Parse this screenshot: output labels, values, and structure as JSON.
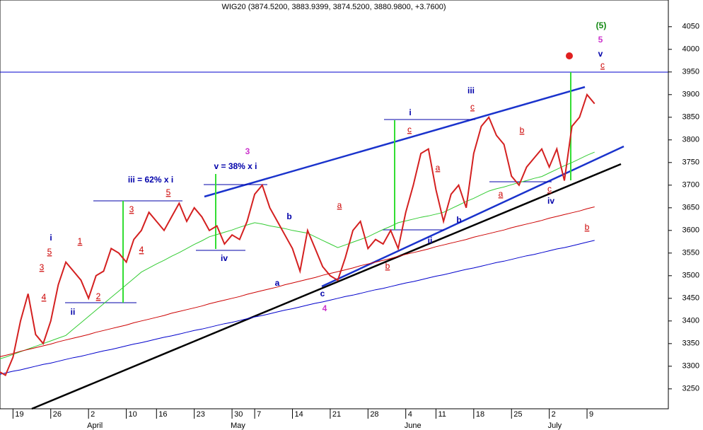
{
  "chart_data": {
    "type": "line",
    "title": "WIG20 (3874.5200, 3883.9399, 3874.5200, 3880.9800, +3.7600)",
    "categories": [
      null,
      null,
      "19",
      null,
      null,
      null,
      null,
      "26",
      null,
      null,
      null,
      null,
      "2",
      null,
      null,
      null,
      null,
      "10",
      null,
      null,
      null,
      "16",
      null,
      null,
      null,
      null,
      "23",
      null,
      null,
      null,
      null,
      "30",
      null,
      null,
      "7",
      null,
      null,
      null,
      null,
      "14",
      null,
      null,
      null,
      null,
      "21",
      null,
      null,
      null,
      null,
      "28",
      null,
      null,
      null,
      null,
      "4",
      null,
      null,
      null,
      "11",
      null,
      null,
      null,
      null,
      "18",
      null,
      null,
      null,
      null,
      "25",
      null,
      null,
      null,
      null,
      "2",
      null,
      null,
      null,
      null,
      "9",
      null
    ],
    "months": [
      "April",
      "May",
      "June",
      "July"
    ],
    "series": [
      {
        "color": "#d42020",
        "values": [
          3290,
          3280,
          3320,
          3400,
          3460,
          3370,
          3350,
          3400,
          3480,
          3530,
          3510,
          3490,
          3450,
          3500,
          3510,
          3560,
          3550,
          3530,
          3580,
          3600,
          3640,
          3620,
          3600,
          3630,
          3660,
          3620,
          3650,
          3630,
          3600,
          3610,
          3570,
          3590,
          3580,
          3620,
          3680,
          3700,
          3650,
          3620,
          3590,
          3560,
          3510,
          3600,
          3560,
          3520,
          3500,
          3490,
          3540,
          3600,
          3620,
          3560,
          3580,
          3570,
          3600,
          3560,
          3640,
          3700,
          3770,
          3780,
          3690,
          3620,
          3680,
          3700,
          3650,
          3770,
          3830,
          3850,
          3810,
          3790,
          3720,
          3700,
          3740,
          3760,
          3780,
          3740,
          3780,
          3710,
          3830,
          3850,
          3900,
          3880
        ]
      },
      {
        "color": "#33cc33",
        "values": [
          3315,
          3320,
          3326,
          3332,
          3338,
          3344,
          3350,
          3356,
          3362,
          3368,
          3382,
          3396,
          3410,
          3424,
          3438,
          3452,
          3466,
          3480,
          3494,
          3508,
          3517,
          3526,
          3534,
          3543,
          3551,
          3560,
          3569,
          3577,
          3586,
          3591,
          3596,
          3601,
          3607,
          3612,
          3617,
          3614,
          3610,
          3607,
          3604,
          3600,
          3597,
          3594,
          3586,
          3578,
          3570,
          3562,
          3568,
          3574,
          3580,
          3586,
          3594,
          3602,
          3609,
          3617,
          3621,
          3625,
          3629,
          3632,
          3636,
          3640,
          3648,
          3656,
          3664,
          3671,
          3679,
          3687,
          3692,
          3696,
          3701,
          3706,
          3710,
          3715,
          3719,
          3727,
          3735,
          3743,
          3750,
          3758,
          3766,
          3773
        ]
      },
      {
        "color": "#cc0000",
        "values": [
          3320,
          3324,
          3328,
          3333,
          3337,
          3341,
          3345,
          3349,
          3354,
          3358,
          3362,
          3366,
          3370,
          3375,
          3379,
          3383,
          3387,
          3391,
          3396,
          3400,
          3404,
          3408,
          3412,
          3417,
          3421,
          3425,
          3429,
          3433,
          3438,
          3442,
          3446,
          3450,
          3454,
          3459,
          3463,
          3467,
          3471,
          3475,
          3480,
          3484,
          3488,
          3492,
          3496,
          3501,
          3505,
          3509,
          3513,
          3517,
          3522,
          3526,
          3530,
          3534,
          3538,
          3543,
          3547,
          3551,
          3555,
          3559,
          3564,
          3568,
          3572,
          3576,
          3580,
          3585,
          3589,
          3593,
          3597,
          3601,
          3606,
          3610,
          3614,
          3618,
          3622,
          3627,
          3631,
          3635,
          3639,
          3643,
          3648,
          3652
        ]
      },
      {
        "color": "#0000cc",
        "values": [
          3281,
          3285,
          3289,
          3292,
          3296,
          3300,
          3304,
          3307,
          3311,
          3315,
          3319,
          3322,
          3326,
          3330,
          3334,
          3337,
          3341,
          3345,
          3349,
          3352,
          3356,
          3360,
          3364,
          3367,
          3371,
          3375,
          3379,
          3382,
          3386,
          3390,
          3394,
          3397,
          3401,
          3405,
          3409,
          3412,
          3416,
          3420,
          3424,
          3427,
          3431,
          3435,
          3439,
          3442,
          3446,
          3450,
          3454,
          3457,
          3461,
          3465,
          3469,
          3472,
          3476,
          3480,
          3484,
          3487,
          3491,
          3495,
          3499,
          3502,
          3506,
          3510,
          3514,
          3517,
          3521,
          3525,
          3529,
          3532,
          3536,
          3540,
          3544,
          3547,
          3551,
          3555,
          3559,
          3562,
          3566,
          3570,
          3574,
          3578
        ]
      }
    ],
    "ylim": [
      3206,
      4109
    ],
    "yticks": [
      3250,
      3300,
      3350,
      3400,
      3450,
      3500,
      3550,
      3600,
      3650,
      3700,
      3750,
      3800,
      3850,
      3900,
      3950,
      4000,
      4050
    ],
    "annotations": [
      "i",
      "5",
      "3",
      "4",
      "1",
      "2",
      "ii",
      "iii = 62% x i",
      "5",
      "3",
      "4",
      "v = 38% x i",
      "3",
      "iv",
      "b",
      "a",
      "c",
      "4",
      "a",
      "b",
      "i",
      "c",
      "ii",
      "a",
      "b",
      "iii",
      "c",
      "b",
      "a",
      "iv",
      "c",
      "(5)",
      "5",
      "v",
      "c",
      "b"
    ]
  }
}
